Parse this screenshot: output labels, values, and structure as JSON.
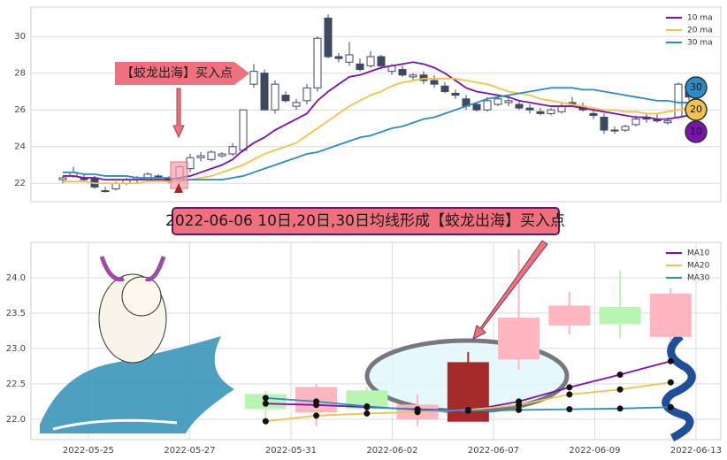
{
  "chart_data": [
    {
      "type": "candlestick",
      "open": [
        22.2,
        22.4,
        22.3,
        22.3,
        21.6,
        21.7,
        22.0,
        22.2,
        22.2,
        22.4,
        22.3,
        22.1,
        22.8,
        23.4,
        23.3,
        23.5,
        23.6,
        23.8,
        27.4,
        28.0,
        26.0,
        26.8,
        26.2,
        26.5,
        27.2,
        31.0,
        28.9,
        28.6,
        28.5,
        28.4,
        28.9,
        28.1,
        28.2,
        27.8,
        27.9,
        27.6,
        27.3,
        26.9,
        26.6,
        26.3,
        26.0,
        26.3,
        26.4,
        26.3,
        26.1,
        25.9,
        25.8,
        25.9,
        26.4,
        26.2,
        25.8,
        25.6,
        24.9,
        24.9,
        25.2,
        25.6,
        25.5,
        25.3,
        25.6,
        27.0
      ],
      "high": [
        22.4,
        22.9,
        22.5,
        22.4,
        21.8,
        22.1,
        22.3,
        22.4,
        22.6,
        22.5,
        22.4,
        23.0,
        23.6,
        23.7,
        23.8,
        23.7,
        24.2,
        26.0,
        28.5,
        28.2,
        27.6,
        27.0,
        26.6,
        27.4,
        30.0,
        31.2,
        29.1,
        29.7,
        28.8,
        29.2,
        29.0,
        28.5,
        28.4,
        28.0,
        28.1,
        27.9,
        27.5,
        27.1,
        26.8,
        26.4,
        26.7,
        26.8,
        26.7,
        26.5,
        26.3,
        26.1,
        26.1,
        26.4,
        26.7,
        26.4,
        26.1,
        25.8,
        25.1,
        25.2,
        25.7,
        25.8,
        25.8,
        25.6,
        27.5,
        27.2
      ],
      "low": [
        22.0,
        22.3,
        22.1,
        21.7,
        21.5,
        21.6,
        21.9,
        22.0,
        22.1,
        22.2,
        22.0,
        22.0,
        22.6,
        23.2,
        23.2,
        23.4,
        23.5,
        23.7,
        27.2,
        26.0,
        25.8,
        26.4,
        26.0,
        26.3,
        27.0,
        28.8,
        28.6,
        28.4,
        28.1,
        28.3,
        28.2,
        27.9,
        27.8,
        27.6,
        27.4,
        27.2,
        26.9,
        26.6,
        26.0,
        25.9,
        25.9,
        26.2,
        26.2,
        26.0,
        25.8,
        25.7,
        25.7,
        25.8,
        26.2,
        25.9,
        25.5,
        24.7,
        24.7,
        24.8,
        25.1,
        25.3,
        25.3,
        25.2,
        25.5,
        26.5
      ],
      "close": [
        22.3,
        22.6,
        22.2,
        21.8,
        21.6,
        22.0,
        22.2,
        22.3,
        22.5,
        22.3,
        22.1,
        22.9,
        23.4,
        23.5,
        23.7,
        23.6,
        24.0,
        26.0,
        28.1,
        26.0,
        27.4,
        26.5,
        26.4,
        27.2,
        29.9,
        28.9,
        28.8,
        29.0,
        28.2,
        28.9,
        28.4,
        28.4,
        27.9,
        27.9,
        27.6,
        27.4,
        27.0,
        26.8,
        26.2,
        26.0,
        26.5,
        26.6,
        26.5,
        26.1,
        26.0,
        25.8,
        26.0,
        26.2,
        26.3,
        26.0,
        25.7,
        24.9,
        24.9,
        25.1,
        25.5,
        25.5,
        25.4,
        25.4,
        27.4,
        26.7
      ],
      "up_color": "#ffffff",
      "down_color": "#3b4a60",
      "lines": [
        {
          "name": "10 ma",
          "color": "#7a12b0",
          "values": [
            22.4,
            22.4,
            22.3,
            22.3,
            22.2,
            22.2,
            22.2,
            22.2,
            22.2,
            22.2,
            22.2,
            22.3,
            22.4,
            22.6,
            22.8,
            23.0,
            23.3,
            23.8,
            24.2,
            24.5,
            24.9,
            25.2,
            25.5,
            25.8,
            26.5,
            27.0,
            27.4,
            27.8,
            27.9,
            28.1,
            28.3,
            28.4,
            28.5,
            28.6,
            28.5,
            28.3,
            28.0,
            27.6,
            27.2,
            27.0,
            26.9,
            26.8,
            26.7,
            26.5,
            26.4,
            26.3,
            26.2,
            26.2,
            26.2,
            26.1,
            26.0,
            25.9,
            25.8,
            25.7,
            25.6,
            25.6,
            25.5,
            25.5,
            25.6,
            25.7
          ]
        },
        {
          "name": "20 ma",
          "color": "#f0c34a",
          "values": [
            22.1,
            22.1,
            22.1,
            22.0,
            22.0,
            22.0,
            22.0,
            22.0,
            22.1,
            22.1,
            22.1,
            22.1,
            22.2,
            22.3,
            22.4,
            22.6,
            22.8,
            23.0,
            23.3,
            23.6,
            23.8,
            24.0,
            24.2,
            24.6,
            25.0,
            25.4,
            25.8,
            26.2,
            26.5,
            26.8,
            27.0,
            27.3,
            27.5,
            27.6,
            27.7,
            27.7,
            27.7,
            27.7,
            27.6,
            27.5,
            27.4,
            27.2,
            27.0,
            26.9,
            26.8,
            26.6,
            26.5,
            26.4,
            26.3,
            26.2,
            26.1,
            26.0,
            26.0,
            25.9,
            25.9,
            25.8,
            25.8,
            25.9,
            26.0,
            26.1
          ]
        },
        {
          "name": "30 ma",
          "color": "#2b8cc4",
          "values": [
            22.6,
            22.6,
            22.5,
            22.5,
            22.4,
            22.4,
            22.4,
            22.3,
            22.3,
            22.3,
            22.3,
            22.2,
            22.2,
            22.2,
            22.2,
            22.2,
            22.3,
            22.4,
            22.6,
            22.8,
            23.0,
            23.2,
            23.4,
            23.6,
            23.7,
            23.9,
            24.1,
            24.3,
            24.5,
            24.6,
            24.8,
            25.0,
            25.1,
            25.3,
            25.5,
            25.6,
            25.8,
            26.0,
            26.2,
            26.4,
            26.6,
            26.7,
            26.8,
            26.9,
            27.0,
            27.1,
            27.2,
            27.2,
            27.2,
            27.1,
            27.1,
            27.0,
            26.9,
            26.8,
            26.7,
            26.6,
            26.5,
            26.5,
            26.4,
            26.4
          ]
        }
      ],
      "ylim": [
        21,
        31.6
      ],
      "yticks": [
        22,
        24,
        26,
        28,
        30
      ],
      "grid": true,
      "legend": "upper right",
      "annotation": "【蛟龙出海】买入点",
      "badges": [
        "30",
        "20",
        "10"
      ]
    },
    {
      "type": "candlestick",
      "x": [
        3.5,
        4.5,
        5.5,
        6.5,
        7.5,
        8.5,
        9.5,
        10.5,
        11.5
      ],
      "open": [
        22.35,
        22.1,
        22.4,
        22.0,
        21.97,
        22.85,
        23.33,
        23.58,
        23.17
      ],
      "high": [
        22.4,
        22.5,
        22.45,
        22.35,
        22.95,
        24.4,
        23.8,
        24.1,
        23.85
      ],
      "low": [
        22.0,
        21.9,
        22.05,
        21.9,
        21.97,
        22.7,
        23.2,
        23.15,
        23.1
      ],
      "close": [
        22.15,
        22.45,
        22.15,
        22.2,
        22.8,
        23.43,
        23.6,
        23.35,
        23.77
      ],
      "colors": [
        "#b8f5b0",
        "#ffb6c1",
        "#b8f5b0",
        "#ffb6c1",
        "#a52a2a",
        "#ffb6c1",
        "#ffb6c1",
        "#b8f5b0",
        "#ffb6c1"
      ],
      "lines": [
        {
          "name": "MA10",
          "color": "#7a12b0",
          "values": [
            22.22,
            22.2,
            22.17,
            22.14,
            22.12,
            22.25,
            22.45,
            22.63,
            22.82
          ]
        },
        {
          "name": "MA20",
          "color": "#f0c34a",
          "values": [
            21.97,
            22.05,
            22.08,
            22.1,
            22.13,
            22.2,
            22.35,
            22.42,
            22.52
          ]
        },
        {
          "name": "MA30",
          "color": "#2b8cc4",
          "values": [
            22.3,
            22.25,
            22.18,
            22.13,
            22.12,
            22.13,
            22.14,
            22.15,
            22.17
          ]
        }
      ],
      "marker_color": "#111111",
      "xlim": [
        -1.135,
        12.49
      ],
      "xticks": [
        {
          "value": 0,
          "label": "2022-05-25"
        },
        {
          "value": 2,
          "label": "2022-05-27"
        },
        {
          "value": 4,
          "label": "2022-05-31"
        },
        {
          "value": 6,
          "label": "2022-06-02"
        },
        {
          "value": 8,
          "label": "2022-06-07"
        },
        {
          "value": 10,
          "label": "2022-06-09"
        },
        {
          "value": 12,
          "label": "2022-06-13"
        }
      ],
      "ylim": [
        21.71,
        24.5
      ],
      "yticks": [
        {
          "value": 22,
          "label": "22.0"
        },
        {
          "value": 22.5,
          "label": "22.5"
        },
        {
          "value": 23,
          "label": "23.0"
        },
        {
          "value": 23.5,
          "label": "23.5"
        },
        {
          "value": 24,
          "label": "24.0"
        }
      ],
      "grid": true,
      "legend": "upper right",
      "annotation": "2022-06-06 10日,20日,30日均线形成【蛟龙出海】买入点"
    }
  ]
}
